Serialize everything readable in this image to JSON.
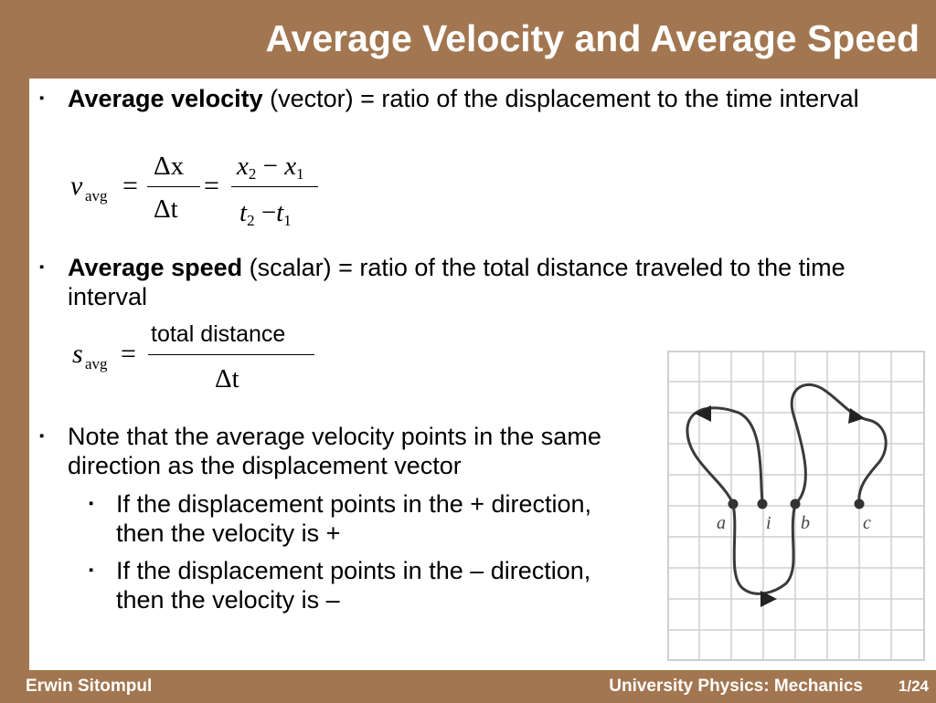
{
  "title": "Average Velocity and Average Speed",
  "bullets": [
    {
      "bold": "Average velocity",
      "rest": " (vector) = ratio of the displacement to the time interval"
    },
    {
      "bold": "Average speed",
      "rest": " (scalar) = ratio of the total distance traveled to the time interval"
    },
    {
      "text": "Note that the average velocity points in the same direction as the displacement vector"
    }
  ],
  "sub_bullets": [
    "If  the displacement points in the + direction, then the velocity is +",
    "If  the displacement points in the  – direction, then the velocity is –"
  ],
  "bullet_marker": "▪",
  "eq1": {
    "v": "v",
    "sub": "avg",
    "eq": "=",
    "num1": "Δx",
    "den1": "Δt",
    "num2_a": "x",
    "num2_a_sub": "2",
    "num2_b": "x",
    "num2_b_sub": "1",
    "den2_a": "t",
    "den2_a_sub": "2",
    "den2_b": "t",
    "den2_b_sub": "1",
    "minus": "−"
  },
  "eq2": {
    "s": "s",
    "sub": "avg",
    "eq": "=",
    "num": "total distance",
    "den": "Δt"
  },
  "figure_labels": [
    "a",
    "i",
    "b",
    "c"
  ],
  "footer": {
    "author": "Erwin Sitompul",
    "course": "University Physics: Mechanics",
    "page": "1/24"
  },
  "colors": {
    "background": "#a27650",
    "panel": "#ffffff",
    "grid": "#cfcfcf"
  }
}
